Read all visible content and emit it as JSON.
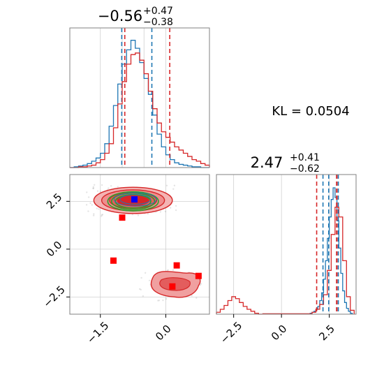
{
  "chart_data": [
    {
      "type": "histogram",
      "panel": "top-left",
      "title_value": "−0.56",
      "title_sup": "+0.47",
      "title_sub": "−0.38",
      "xlim": [
        -2.2,
        1.0
      ],
      "series": [
        {
          "color": "#1f77b4",
          "bins": [
            -2.2,
            -2.1,
            -2.0,
            -1.9,
            -1.8,
            -1.7,
            -1.6,
            -1.5,
            -1.4,
            -1.3,
            -1.2,
            -1.1,
            -1.0,
            -0.9,
            -0.8,
            -0.7,
            -0.6,
            -0.5,
            -0.4,
            -0.3,
            -0.2,
            -0.1,
            0.0,
            0.1,
            0.2,
            0.3,
            0.4,
            0.5,
            0.6,
            0.7,
            0.8,
            0.9
          ],
          "counts": [
            0,
            1,
            2,
            3,
            5,
            8,
            12,
            18,
            30,
            52,
            78,
            105,
            130,
            148,
            160,
            150,
            132,
            112,
            92,
            66,
            42,
            26,
            16,
            10,
            6,
            4,
            3,
            2,
            1,
            1,
            0,
            0
          ],
          "quantile_lines": [
            -1.01,
            -0.32
          ]
        },
        {
          "color": "#d62728",
          "bins": [
            -2.2,
            -2.1,
            -2.0,
            -1.9,
            -1.8,
            -1.7,
            -1.6,
            -1.5,
            -1.4,
            -1.3,
            -1.2,
            -1.1,
            -1.0,
            -0.9,
            -0.8,
            -0.7,
            -0.6,
            -0.5,
            -0.4,
            -0.3,
            -0.2,
            -0.1,
            0.0,
            0.1,
            0.2,
            0.3,
            0.4,
            0.5,
            0.6,
            0.7,
            0.8,
            0.9
          ],
          "counts": [
            0,
            0,
            1,
            1,
            2,
            3,
            6,
            10,
            18,
            30,
            50,
            80,
            108,
            130,
            142,
            144,
            135,
            118,
            96,
            74,
            56,
            45,
            38,
            32,
            26,
            22,
            18,
            14,
            10,
            8,
            5,
            3
          ],
          "quantile_lines": [
            -0.94,
            0.09
          ]
        }
      ]
    },
    {
      "type": "contour",
      "panel": "bottom-left",
      "xlim": [
        -2.2,
        1.0
      ],
      "ylim": [
        -3.4,
        3.9
      ],
      "xticks": [
        "−1.5",
        "0.0"
      ],
      "yticks": [
        "2.5",
        "0.0",
        "−2.5"
      ],
      "blobs": [
        {
          "cx": -0.75,
          "cy": 2.55,
          "rx": 0.72,
          "ry": 0.55,
          "color": "#d62728"
        },
        {
          "cx": 0.1,
          "cy": -1.9,
          "rx": 0.5,
          "ry": 0.55,
          "color": "#d62728"
        },
        {
          "cx": -0.75,
          "cy": 2.5,
          "rx": 0.58,
          "ry": 0.5,
          "color": "#2ca02c"
        }
      ],
      "markers": [
        {
          "x": -1.0,
          "y": 1.65,
          "color": "#ff0000"
        },
        {
          "x": -1.2,
          "y": -0.6,
          "color": "#ff0000"
        },
        {
          "x": 0.25,
          "y": -0.85,
          "color": "#ff0000"
        },
        {
          "x": 0.15,
          "y": -1.95,
          "color": "#ff0000"
        },
        {
          "x": 0.75,
          "y": -1.4,
          "color": "#ff0000"
        },
        {
          "x": -0.72,
          "y": 2.6,
          "color": "#0000ff"
        }
      ]
    },
    {
      "type": "histogram",
      "panel": "bottom-right",
      "title_value": "2.47",
      "title_sup": "+0.41",
      "title_sub": "−0.62",
      "xlim": [
        -3.4,
        3.9
      ],
      "xticks": [
        "−2.5",
        "0.0",
        "2.5"
      ],
      "series": [
        {
          "color": "#1f77b4",
          "bins": [
            1.5,
            1.6,
            1.7,
            1.8,
            1.9,
            2.0,
            2.1,
            2.2,
            2.3,
            2.4,
            2.5,
            2.6,
            2.7,
            2.8,
            2.9,
            3.0,
            3.1,
            3.2,
            3.3,
            3.4,
            3.5,
            3.6
          ],
          "counts": [
            1,
            2,
            3,
            5,
            8,
            14,
            22,
            36,
            55,
            78,
            100,
            118,
            130,
            120,
            96,
            68,
            42,
            24,
            12,
            6,
            3,
            1
          ],
          "quantile_lines": [
            2.17,
            2.97
          ]
        },
        {
          "color": "#d62728",
          "bins": [
            -3.4,
            -3.2,
            -3.0,
            -2.8,
            -2.6,
            -2.4,
            -2.2,
            -2.0,
            -1.8,
            -1.6,
            -1.4,
            -1.2,
            1.6,
            1.8,
            2.0,
            2.2,
            2.4,
            2.6,
            2.8,
            3.0,
            3.2,
            3.4,
            3.6
          ],
          "counts": [
            2,
            5,
            9,
            14,
            18,
            16,
            12,
            8,
            5,
            3,
            1,
            0,
            2,
            5,
            10,
            20,
            45,
            82,
            110,
            100,
            55,
            18,
            4
          ],
          "quantile_lines": [
            1.84,
            2.88
          ]
        }
      ]
    }
  ],
  "annotation": "KL = 0.0504"
}
